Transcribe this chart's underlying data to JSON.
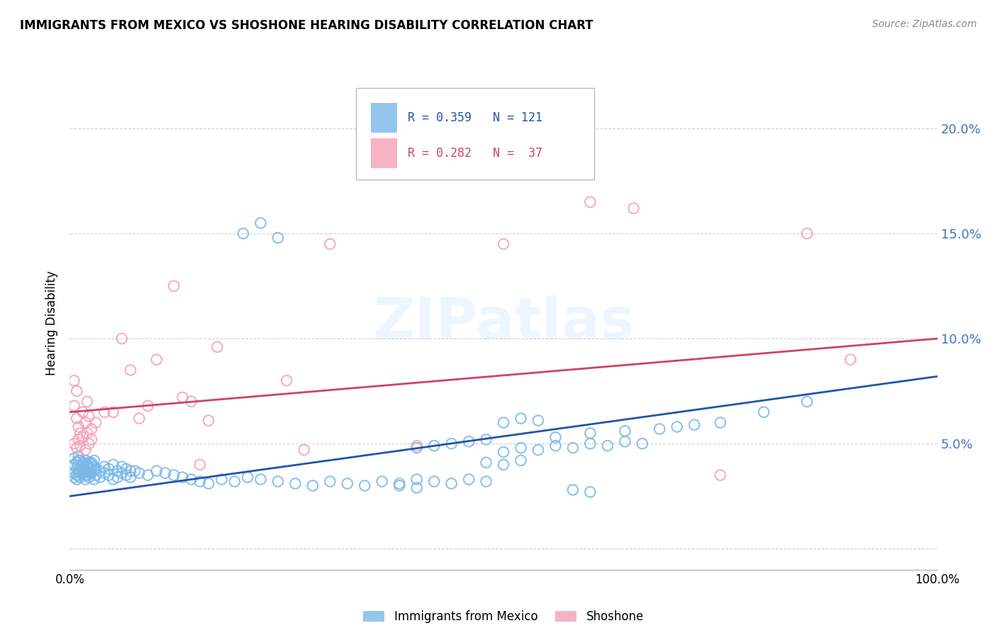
{
  "title": "IMMIGRANTS FROM MEXICO VS SHOSHONE HEARING DISABILITY CORRELATION CHART",
  "source": "Source: ZipAtlas.com",
  "ylabel": "Hearing Disability",
  "y_ticks": [
    0.0,
    0.05,
    0.1,
    0.15,
    0.2
  ],
  "y_tick_labels": [
    "",
    "5.0%",
    "10.0%",
    "15.0%",
    "20.0%"
  ],
  "xlim": [
    0.0,
    1.0
  ],
  "ylim": [
    -0.01,
    0.225
  ],
  "legend_label_blue": "Immigrants from Mexico",
  "legend_label_pink": "Shoshone",
  "blue_color": "#7ab8e8",
  "pink_color": "#f4a0b5",
  "blue_line_color": "#2255aa",
  "pink_line_color": "#cc4466",
  "tick_color": "#4472c4",
  "watermark_color": "#d8e8f0",
  "blue_x": [
    0.005,
    0.008,
    0.01,
    0.012,
    0.015,
    0.018,
    0.02,
    0.022,
    0.025,
    0.028,
    0.005,
    0.008,
    0.01,
    0.012,
    0.015,
    0.018,
    0.02,
    0.022,
    0.025,
    0.028,
    0.005,
    0.008,
    0.01,
    0.012,
    0.015,
    0.018,
    0.02,
    0.022,
    0.025,
    0.028,
    0.005,
    0.008,
    0.01,
    0.012,
    0.015,
    0.018,
    0.02,
    0.022,
    0.025,
    0.028,
    0.03,
    0.035,
    0.04,
    0.045,
    0.05,
    0.055,
    0.06,
    0.065,
    0.07,
    0.03,
    0.035,
    0.04,
    0.045,
    0.05,
    0.055,
    0.06,
    0.065,
    0.07,
    0.075,
    0.08,
    0.09,
    0.1,
    0.11,
    0.12,
    0.13,
    0.14,
    0.15,
    0.16,
    0.175,
    0.19,
    0.205,
    0.22,
    0.24,
    0.26,
    0.28,
    0.3,
    0.32,
    0.34,
    0.36,
    0.38,
    0.4,
    0.42,
    0.44,
    0.46,
    0.48,
    0.5,
    0.52,
    0.54,
    0.56,
    0.58,
    0.6,
    0.62,
    0.64,
    0.66,
    0.5,
    0.52,
    0.54,
    0.4,
    0.42,
    0.44,
    0.46,
    0.48,
    0.56,
    0.6,
    0.64,
    0.68,
    0.7,
    0.72,
    0.75,
    0.8,
    0.85,
    0.48,
    0.5,
    0.52,
    0.38,
    0.4,
    0.58,
    0.6,
    0.2,
    0.22,
    0.24
  ],
  "blue_y": [
    0.04,
    0.038,
    0.042,
    0.039,
    0.041,
    0.037,
    0.04,
    0.038,
    0.041,
    0.039,
    0.036,
    0.035,
    0.037,
    0.036,
    0.038,
    0.035,
    0.037,
    0.036,
    0.038,
    0.037,
    0.043,
    0.041,
    0.044,
    0.042,
    0.04,
    0.042,
    0.039,
    0.041,
    0.04,
    0.042,
    0.034,
    0.033,
    0.035,
    0.034,
    0.036,
    0.033,
    0.035,
    0.034,
    0.036,
    0.033,
    0.038,
    0.037,
    0.039,
    0.038,
    0.04,
    0.037,
    0.039,
    0.038,
    0.037,
    0.035,
    0.034,
    0.036,
    0.035,
    0.033,
    0.034,
    0.036,
    0.035,
    0.034,
    0.037,
    0.036,
    0.035,
    0.037,
    0.036,
    0.035,
    0.034,
    0.033,
    0.032,
    0.031,
    0.033,
    0.032,
    0.034,
    0.033,
    0.032,
    0.031,
    0.03,
    0.032,
    0.031,
    0.03,
    0.032,
    0.031,
    0.033,
    0.032,
    0.031,
    0.033,
    0.032,
    0.046,
    0.048,
    0.047,
    0.049,
    0.048,
    0.05,
    0.049,
    0.051,
    0.05,
    0.06,
    0.062,
    0.061,
    0.048,
    0.049,
    0.05,
    0.051,
    0.052,
    0.053,
    0.055,
    0.056,
    0.057,
    0.058,
    0.059,
    0.06,
    0.065,
    0.07,
    0.041,
    0.04,
    0.042,
    0.03,
    0.029,
    0.028,
    0.027,
    0.15,
    0.155,
    0.148
  ],
  "blue_trend_x": [
    0.0,
    1.0
  ],
  "blue_trend_y": [
    0.025,
    0.082
  ],
  "pink_x": [
    0.005,
    0.008,
    0.01,
    0.012,
    0.015,
    0.018,
    0.02,
    0.022,
    0.025,
    0.005,
    0.008,
    0.01,
    0.012,
    0.015,
    0.018,
    0.02,
    0.022,
    0.025,
    0.005,
    0.008,
    0.03,
    0.04,
    0.05,
    0.06,
    0.07,
    0.08,
    0.09,
    0.1,
    0.12,
    0.13,
    0.14,
    0.15,
    0.16,
    0.17,
    0.25,
    0.27,
    0.3,
    0.4,
    0.5,
    0.6,
    0.65,
    0.75,
    0.85,
    0.9
  ],
  "pink_y": [
    0.068,
    0.062,
    0.058,
    0.055,
    0.065,
    0.06,
    0.07,
    0.063,
    0.057,
    0.05,
    0.048,
    0.052,
    0.049,
    0.053,
    0.047,
    0.055,
    0.05,
    0.052,
    0.08,
    0.075,
    0.06,
    0.065,
    0.065,
    0.1,
    0.085,
    0.062,
    0.068,
    0.09,
    0.125,
    0.072,
    0.07,
    0.04,
    0.061,
    0.096,
    0.08,
    0.047,
    0.145,
    0.049,
    0.145,
    0.165,
    0.162,
    0.035,
    0.15,
    0.09
  ],
  "pink_trend_x": [
    0.0,
    1.0
  ],
  "pink_trend_y": [
    0.065,
    0.1
  ]
}
